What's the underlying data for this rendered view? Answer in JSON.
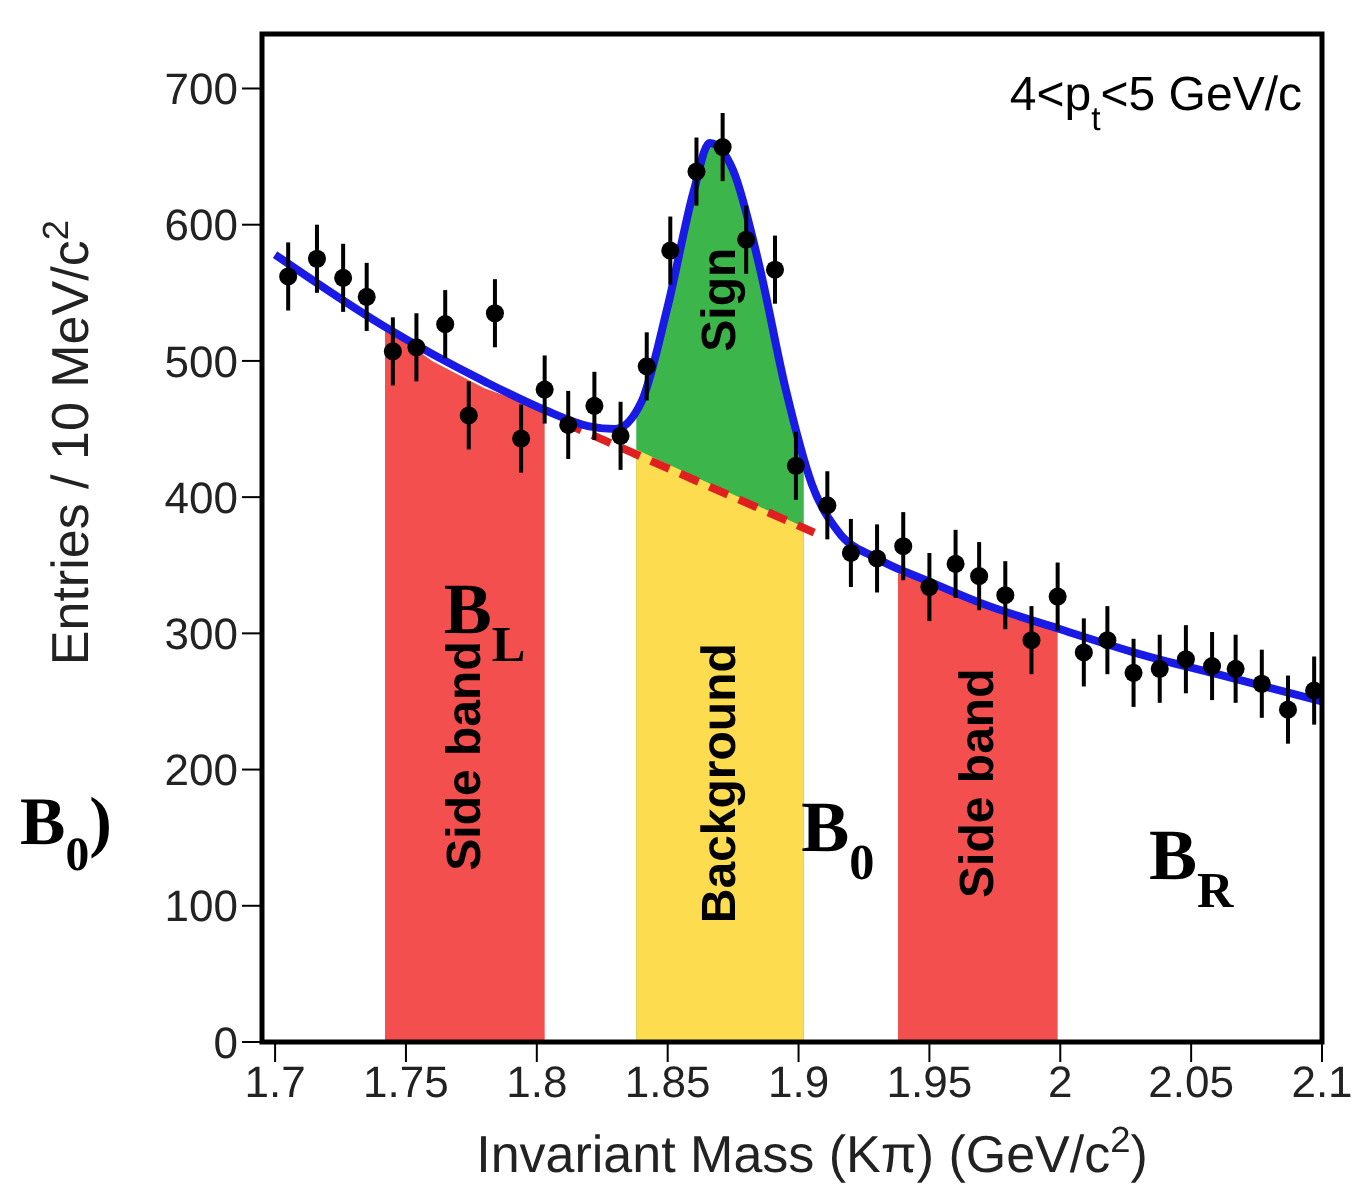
{
  "chart_data": {
    "type": "scatter",
    "xlabel": "Invariant Mass (Kπ) (GeV/c$^{2}$)",
    "ylabel": "Entries / 10 MeV/c$^{2}$",
    "annotations": [
      "4<p$_{t}$<5 GeV/c",
      "B$_{L}$",
      "B$_{0}$",
      "B$_{R}$",
      "B$_{0}$)"
    ],
    "xlim": [
      1.695,
      2.1
    ],
    "xticks": [
      1.7,
      1.75,
      1.8,
      1.85,
      1.9,
      1.95,
      2,
      2.05,
      2.1
    ],
    "ylim": [
      0,
      740
    ],
    "yticks": [
      0,
      100,
      200,
      300,
      400,
      500,
      600,
      700
    ],
    "grid": false,
    "legend": false,
    "series": [
      {
        "type": "area",
        "name": "Side band",
        "color": "#f44f4f",
        "x": [
          1.742,
          1.76,
          1.78,
          1.803
        ],
        "values": [
          525,
          500,
          480,
          464
        ]
      },
      {
        "type": "area",
        "name": "Sign",
        "color": "#3cb54a",
        "x": [
          1.838,
          1.85,
          1.86,
          1.866,
          1.875,
          1.885,
          1.895,
          1.902
        ],
        "values": [
          465,
          540,
          625,
          660,
          640,
          570,
          480,
          430
        ]
      },
      {
        "type": "area",
        "name": "Background",
        "color": "#fddc4f",
        "x": [
          1.838,
          1.902
        ],
        "values": [
          435,
          378
        ]
      },
      {
        "type": "area",
        "name": "Side band",
        "color": "#f44f4f",
        "x": [
          1.938,
          1.96,
          1.98,
          1.999
        ],
        "values": [
          344,
          330,
          316,
          307
        ]
      },
      {
        "type": "line",
        "color": "#e02020",
        "line_style": "dashed",
        "marker": "none",
        "x": [
          1.81,
          1.906
        ],
        "values": [
          455,
          374
        ]
      },
      {
        "type": "line",
        "color": "#1a1ae6",
        "line_style": "solid",
        "marker": "none",
        "x": [
          1.7,
          1.742,
          1.78,
          1.803,
          1.82,
          1.83,
          1.84,
          1.85,
          1.86,
          1.866,
          1.875,
          1.885,
          1.895,
          1.905,
          1.915,
          1.93,
          1.95,
          1.97,
          2.0,
          2.03,
          2.06,
          2.1
        ],
        "values": [
          578,
          525,
          485,
          464,
          452,
          450,
          470,
          540,
          625,
          660,
          640,
          570,
          480,
          410,
          375,
          355,
          338,
          322,
          303,
          285,
          270,
          250
        ]
      },
      {
        "color": "#000000",
        "marker": "circle",
        "x": [
          1.705,
          1.716,
          1.726,
          1.735,
          1.745,
          1.754,
          1.765,
          1.774,
          1.784,
          1.794,
          1.803,
          1.812,
          1.822,
          1.832,
          1.842,
          1.851,
          1.861,
          1.871,
          1.88,
          1.891,
          1.899,
          1.911,
          1.92,
          1.93,
          1.94,
          1.95,
          1.96,
          1.969,
          1.979,
          1.989,
          1.999,
          2.009,
          2.018,
          2.028,
          2.038,
          2.048,
          2.058,
          2.067,
          2.077,
          2.087,
          2.097
        ],
        "values": [
          562,
          575,
          561,
          547,
          507,
          510,
          527,
          460,
          535,
          443,
          479,
          453,
          467,
          445,
          496,
          581,
          639,
          657,
          589,
          567,
          423,
          394,
          359,
          355,
          364,
          334,
          351,
          342,
          328,
          295,
          327,
          286,
          295,
          271,
          274,
          281,
          276,
          274,
          263,
          244,
          258
        ],
        "errors": [
          25,
          25,
          25,
          25,
          25,
          25,
          25,
          25,
          25,
          25,
          25,
          25,
          25,
          25,
          25,
          25,
          25,
          25,
          25,
          25,
          25,
          25,
          25,
          25,
          25,
          25,
          25,
          25,
          25,
          25,
          25,
          25,
          25,
          25,
          25,
          25,
          25,
          25,
          25,
          25,
          25
        ]
      }
    ]
  }
}
